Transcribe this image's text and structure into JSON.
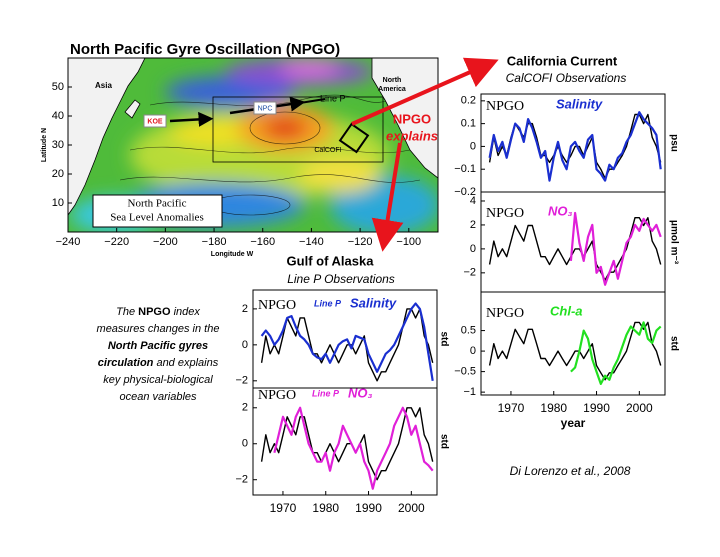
{
  "map": {
    "title": "North Pacific Gyre Oscillation (NPGO)",
    "xlabel": "Longitude W",
    "ylabel": "Latitude N",
    "xlim": [
      -240,
      -88
    ],
    "ylim": [
      0,
      60
    ],
    "xticks": [
      {
        "value": -240,
        "label": "−240"
      },
      {
        "value": -220,
        "label": "−220"
      },
      {
        "value": -200,
        "label": "−200"
      },
      {
        "value": -180,
        "label": "−180"
      },
      {
        "value": -160,
        "label": "−160"
      },
      {
        "value": -140,
        "label": "−140"
      },
      {
        "value": -120,
        "label": "−120"
      },
      {
        "value": -100,
        "label": "−100"
      }
    ],
    "yticks": [
      10,
      20,
      30,
      40,
      50
    ],
    "labels": {
      "asia": "Asia",
      "north_america": [
        "North",
        "America"
      ],
      "line_p": "Line P",
      "npc": "NPC",
      "koe": "KOE",
      "calcofi": "CalCOFI"
    },
    "legend": [
      "North Pacific",
      "Sea Level Anomalies"
    ]
  },
  "annotations": {
    "california_title": "California Current",
    "california_subtitle": "CalCOFI Observations",
    "alaska_title": "Gulf of Alaska",
    "alaska_subtitle": "Line P Observations",
    "npgo_explains": [
      "NPGO",
      "explains"
    ],
    "description": [
      [
        "The ",
        "NPGO",
        " index"
      ],
      [
        "measures changes in the"
      ],
      [
        "North Pacific gyres"
      ],
      [
        "circulation",
        " and explains"
      ],
      [
        "key physical-biological"
      ],
      [
        "ocean variables"
      ]
    ],
    "citation": "Di Lorenzo et al., 2008"
  },
  "chart_data": [
    {
      "type": "line",
      "ylabel": "psu",
      "x": [
        1965,
        1966,
        1967,
        1968,
        1969,
        1970,
        1971,
        1972,
        1973,
        1974,
        1975,
        1976,
        1977,
        1978,
        1979,
        1980,
        1981,
        1982,
        1983,
        1984,
        1985,
        1986,
        1987,
        1988,
        1989,
        1990,
        1991,
        1992,
        1993,
        1994,
        1995,
        1996,
        1997,
        1998,
        1999,
        2000,
        2001,
        2002,
        2003,
        2004,
        2005
      ],
      "xlim": [
        1963,
        2006
      ],
      "ylim": [
        -0.2,
        0.23
      ],
      "yticks": [
        0.2,
        0.1,
        0,
        {
          "value": -0.1,
          "label": "−0.1"
        },
        {
          "value": -0.2,
          "label": "−0.2"
        }
      ],
      "series": [
        {
          "name": "NPGO",
          "color": "#000000",
          "values": [
            -0.07,
            0.04,
            -0.04,
            0,
            -0.04,
            0.04,
            0.1,
            0.07,
            0.04,
            0.1,
            0.1,
            0.04,
            -0.04,
            -0.04,
            -0.07,
            -0.04,
            0,
            -0.04,
            -0.07,
            -0.04,
            0,
            0,
            -0.04,
            0,
            0.04,
            -0.07,
            -0.1,
            -0.14,
            -0.1,
            -0.1,
            -0.07,
            -0.04,
            0,
            0.07,
            0.14,
            0.14,
            0.1,
            0.14,
            0.04,
            0,
            -0.07
          ]
        },
        {
          "name": "Salinity",
          "color": "#1a2fd0",
          "values": [
            -0.05,
            0.05,
            -0.02,
            0.02,
            -0.05,
            0.03,
            0.1,
            0.08,
            0.02,
            0.12,
            0.08,
            0.02,
            -0.05,
            -0.02,
            -0.15,
            -0.05,
            0.02,
            -0.06,
            -0.1,
            0,
            0.02,
            -0.02,
            -0.05,
            0.03,
            0.05,
            -0.1,
            -0.12,
            -0.15,
            -0.08,
            -0.1,
            -0.05,
            -0.03,
            0.02,
            0.05,
            0.1,
            0.15,
            0.12,
            0.1,
            0.08,
            0.05,
            -0.1
          ]
        }
      ]
    },
    {
      "type": "line",
      "ylabel": "μmol m⁻³",
      "x": [
        1965,
        1966,
        1967,
        1968,
        1969,
        1970,
        1971,
        1972,
        1973,
        1974,
        1975,
        1976,
        1977,
        1978,
        1979,
        1980,
        1981,
        1982,
        1983,
        1984,
        1985,
        1986,
        1987,
        1988,
        1989,
        1990,
        1991,
        1992,
        1993,
        1994,
        1995,
        1996,
        1997,
        1998,
        1999,
        2000,
        2001,
        2002,
        2003,
        2004,
        2005
      ],
      "xlim": [
        1963,
        2006
      ],
      "ylim": [
        -3.6,
        4.75
      ],
      "yticks": [
        4,
        2,
        0,
        {
          "value": -2,
          "label": "−2"
        }
      ],
      "series": [
        {
          "name": "NPGO",
          "color": "#000000",
          "values": [
            -1.3,
            0.65,
            -0.65,
            0,
            -0.65,
            0.65,
            1.95,
            1.3,
            0.65,
            1.95,
            1.95,
            0.65,
            -0.65,
            -0.65,
            -1.3,
            -0.65,
            0,
            -0.65,
            -1.3,
            -0.65,
            0,
            0,
            -0.65,
            0,
            0.65,
            -1.3,
            -1.95,
            -2.6,
            -1.95,
            -1.95,
            -1.3,
            -0.65,
            0,
            1.3,
            2.6,
            2.6,
            1.95,
            2.6,
            0.65,
            0,
            -1.3
          ]
        },
        {
          "name": "NO₃",
          "color": "#e020d8",
          "values": [
            null,
            null,
            null,
            null,
            null,
            null,
            null,
            null,
            null,
            null,
            null,
            null,
            null,
            null,
            null,
            null,
            null,
            null,
            null,
            -1,
            3,
            0.5,
            -1,
            1,
            2,
            -2,
            -1.5,
            -3,
            -2,
            -1,
            -2.5,
            -1,
            0.5,
            1,
            2,
            1.5,
            2.5,
            2,
            1.5,
            2,
            1
          ]
        }
      ]
    },
    {
      "type": "line",
      "ylabel": "std",
      "xlabel": "year",
      "x": [
        1965,
        1966,
        1967,
        1968,
        1969,
        1970,
        1971,
        1972,
        1973,
        1974,
        1975,
        1976,
        1977,
        1978,
        1979,
        1980,
        1981,
        1982,
        1983,
        1984,
        1985,
        1986,
        1987,
        1988,
        1989,
        1990,
        1991,
        1992,
        1993,
        1994,
        1995,
        1996,
        1997,
        1998,
        1999,
        2000,
        2001,
        2002,
        2003,
        2004,
        2005
      ],
      "xlim": [
        1963,
        2006
      ],
      "ylim": [
        -1.07,
        1.44
      ],
      "xticks": [
        1970,
        1980,
        1990,
        2000
      ],
      "yticks": [
        0.5,
        0,
        {
          "value": -0.5,
          "label": "−0.5"
        },
        {
          "value": -1,
          "label": "−1"
        }
      ],
      "series": [
        {
          "name": "NPGO",
          "color": "#000000",
          "values": [
            -0.35,
            0.18,
            -0.18,
            0,
            -0.18,
            0.18,
            0.53,
            0.35,
            0.18,
            0.53,
            0.53,
            0.18,
            -0.18,
            -0.18,
            -0.35,
            -0.18,
            0,
            -0.18,
            -0.35,
            -0.18,
            0,
            0,
            -0.18,
            0,
            0.18,
            -0.35,
            -0.53,
            -0.7,
            -0.53,
            -0.53,
            -0.35,
            -0.18,
            0,
            0.35,
            0.7,
            0.7,
            0.53,
            0.7,
            0.18,
            0,
            -0.35
          ]
        },
        {
          "name": "Chl-a",
          "color": "#22e020",
          "values": [
            null,
            null,
            null,
            null,
            null,
            null,
            null,
            null,
            null,
            null,
            null,
            null,
            null,
            null,
            null,
            null,
            null,
            null,
            null,
            -0.5,
            -0.4,
            0,
            0.5,
            0.3,
            -0.2,
            -0.5,
            -0.8,
            -0.6,
            -0.7,
            -0.4,
            -0.2,
            0.1,
            0.4,
            0.6,
            0.5,
            0.4,
            0.7,
            0.3,
            0.2,
            0.5,
            0.6
          ]
        }
      ]
    },
    {
      "type": "line",
      "ylabel": "std",
      "source": "Line P",
      "x": [
        1965,
        1966,
        1967,
        1968,
        1969,
        1970,
        1971,
        1972,
        1973,
        1974,
        1975,
        1976,
        1977,
        1978,
        1979,
        1980,
        1981,
        1982,
        1983,
        1984,
        1985,
        1986,
        1987,
        1988,
        1989,
        1990,
        1991,
        1992,
        1993,
        1994,
        1995,
        1996,
        1997,
        1998,
        1999,
        2000,
        2001,
        2002,
        2003,
        2004,
        2005
      ],
      "xlim": [
        1963,
        2006
      ],
      "ylim": [
        -2.4,
        3.05
      ],
      "yticks": [
        2,
        0,
        {
          "value": -2,
          "label": "−2"
        }
      ],
      "series": [
        {
          "name": "NPGO",
          "color": "#000000",
          "values": [
            -1,
            0.5,
            -0.5,
            0,
            -0.5,
            0.5,
            1.5,
            1,
            0.5,
            1.5,
            1.5,
            0.5,
            -0.5,
            -0.5,
            -1,
            -0.5,
            0,
            -0.5,
            -1,
            -0.5,
            0,
            0,
            -0.5,
            0,
            0.5,
            -1,
            -1.5,
            -2,
            -1.5,
            -1.5,
            -1,
            -0.5,
            0,
            1,
            2,
            2,
            1.5,
            2,
            0.5,
            0,
            -1
          ]
        },
        {
          "name": "Salinity",
          "color": "#1a2fd0",
          "values": [
            0.5,
            0.8,
            0.5,
            0,
            0.3,
            0.8,
            1.5,
            1.6,
            1,
            0.5,
            0.3,
            0,
            -0.5,
            -0.7,
            -0.8,
            -0.5,
            -1,
            -0.5,
            0,
            0.2,
            0.3,
            -0.2,
            0.5,
            0.4,
            0.3,
            -0.5,
            -1,
            -1.5,
            -1,
            -0.5,
            -0.3,
            0,
            0.5,
            1,
            1.5,
            2,
            2.3,
            2,
            1,
            -0.5,
            -2
          ]
        }
      ]
    },
    {
      "type": "line",
      "ylabel": "std",
      "source": "Line P",
      "x": [
        1965,
        1966,
        1967,
        1968,
        1969,
        1970,
        1971,
        1972,
        1973,
        1974,
        1975,
        1976,
        1977,
        1978,
        1979,
        1980,
        1981,
        1982,
        1983,
        1984,
        1985,
        1986,
        1987,
        1988,
        1989,
        1990,
        1991,
        1992,
        1993,
        1994,
        1995,
        1996,
        1997,
        1998,
        1999,
        2000,
        2001,
        2002,
        2003,
        2004,
        2005
      ],
      "xlim": [
        1963,
        2006
      ],
      "ylim": [
        -2.85,
        3.1
      ],
      "xticks": [
        1970,
        1980,
        1990,
        2000
      ],
      "yticks": [
        2,
        0,
        {
          "value": -2,
          "label": "−2"
        }
      ],
      "series": [
        {
          "name": "NPGO",
          "color": "#000000",
          "values": [
            -1,
            0.5,
            -0.5,
            0,
            -0.5,
            0.5,
            1.5,
            1,
            0.5,
            1.5,
            1.5,
            0.5,
            -0.5,
            -0.5,
            -1,
            -0.5,
            0,
            -0.5,
            -1,
            -0.5,
            0,
            0,
            -0.5,
            0,
            0.5,
            -1,
            -1.5,
            -2,
            -1.5,
            -1.5,
            -1,
            -0.5,
            0,
            1,
            2,
            2,
            1.5,
            2,
            0.5,
            0,
            -1
          ]
        },
        {
          "name": "NO₃",
          "color": "#e020d8",
          "values": [
            null,
            null,
            null,
            -0.5,
            0.5,
            1.5,
            1,
            0.5,
            1.5,
            2,
            1,
            0,
            -0.5,
            -1,
            -1,
            -0.5,
            -1.5,
            -0.5,
            0,
            1,
            0.5,
            0,
            -0.5,
            0,
            -1,
            -1.5,
            -2.5,
            -1.5,
            -1,
            -0.5,
            0,
            1,
            1.5,
            2,
            1.5,
            0.5,
            1,
            0,
            -1,
            -1.2,
            -1.5
          ]
        }
      ]
    }
  ]
}
